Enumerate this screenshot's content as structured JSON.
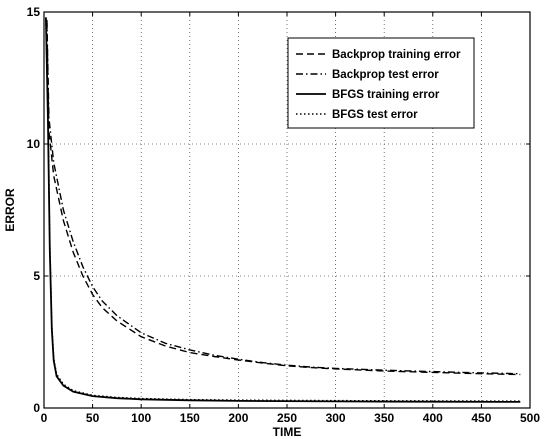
{
  "chart_data": {
    "type": "line",
    "title": "",
    "xlabel": "TIME",
    "ylabel": "ERROR",
    "xlim": [
      0,
      500
    ],
    "ylim": [
      0,
      15
    ],
    "xticks": [
      "0",
      "50",
      "100",
      "150",
      "200",
      "250",
      "300",
      "350",
      "400",
      "450",
      "500"
    ],
    "yticks": [
      "0",
      "5",
      "10",
      "15"
    ],
    "grid": true,
    "legend_position": "top-right",
    "series": [
      {
        "name": "Backprop training error",
        "style": "dashed",
        "color": "#000000",
        "points": [
          [
            3,
            14.6
          ],
          [
            5,
            10.5
          ],
          [
            10,
            8.8
          ],
          [
            20,
            7.1
          ],
          [
            30,
            5.9
          ],
          [
            40,
            5.0
          ],
          [
            50,
            4.3
          ],
          [
            60,
            3.8
          ],
          [
            75,
            3.3
          ],
          [
            100,
            2.7
          ],
          [
            125,
            2.35
          ],
          [
            150,
            2.1
          ],
          [
            175,
            1.95
          ],
          [
            200,
            1.82
          ],
          [
            225,
            1.7
          ],
          [
            250,
            1.6
          ],
          [
            275,
            1.53
          ],
          [
            300,
            1.48
          ],
          [
            350,
            1.4
          ],
          [
            400,
            1.35
          ],
          [
            450,
            1.3
          ],
          [
            490,
            1.27
          ]
        ]
      },
      {
        "name": "Backprop test error",
        "style": "dashdot",
        "color": "#000000",
        "points": [
          [
            3,
            14.7
          ],
          [
            5,
            11.0
          ],
          [
            10,
            9.3
          ],
          [
            20,
            7.5
          ],
          [
            30,
            6.3
          ],
          [
            40,
            5.35
          ],
          [
            50,
            4.6
          ],
          [
            60,
            4.05
          ],
          [
            75,
            3.5
          ],
          [
            100,
            2.85
          ],
          [
            125,
            2.45
          ],
          [
            150,
            2.2
          ],
          [
            175,
            2.0
          ],
          [
            200,
            1.85
          ],
          [
            225,
            1.72
          ],
          [
            250,
            1.62
          ],
          [
            275,
            1.55
          ],
          [
            300,
            1.5
          ],
          [
            350,
            1.43
          ],
          [
            400,
            1.38
          ],
          [
            450,
            1.33
          ],
          [
            490,
            1.3
          ]
        ]
      },
      {
        "name": "BFGS training error",
        "style": "solid",
        "color": "#000000",
        "points": [
          [
            2,
            14.8
          ],
          [
            4,
            11.0
          ],
          [
            6,
            6.0
          ],
          [
            8,
            3.0
          ],
          [
            10,
            1.8
          ],
          [
            13,
            1.2
          ],
          [
            20,
            0.85
          ],
          [
            30,
            0.62
          ],
          [
            50,
            0.45
          ],
          [
            75,
            0.37
          ],
          [
            100,
            0.33
          ],
          [
            150,
            0.29
          ],
          [
            200,
            0.27
          ],
          [
            300,
            0.25
          ],
          [
            400,
            0.24
          ],
          [
            490,
            0.23
          ]
        ]
      },
      {
        "name": "BFGS test error",
        "style": "dotted",
        "color": "#000000",
        "points": [
          [
            2,
            14.7
          ],
          [
            4,
            11.2
          ],
          [
            6,
            6.3
          ],
          [
            8,
            3.2
          ],
          [
            10,
            1.9
          ],
          [
            13,
            1.28
          ],
          [
            20,
            0.9
          ],
          [
            30,
            0.66
          ],
          [
            50,
            0.48
          ],
          [
            75,
            0.4
          ],
          [
            100,
            0.36
          ],
          [
            150,
            0.32
          ],
          [
            200,
            0.3
          ],
          [
            300,
            0.28
          ],
          [
            400,
            0.27
          ],
          [
            490,
            0.26
          ]
        ]
      }
    ]
  }
}
